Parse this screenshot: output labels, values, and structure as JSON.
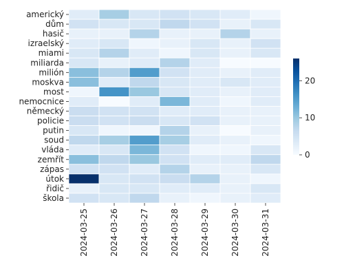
{
  "chart_data": {
    "type": "heatmap",
    "title": "",
    "xlabel": "",
    "ylabel": "",
    "x_categories": [
      "2024-03-25",
      "2024-03-26",
      "2024-03-27",
      "2024-03-28",
      "2024-03-29",
      "2024-03-30",
      "2024-03-31"
    ],
    "y_categories": [
      "americký",
      "dům",
      "hasič",
      "izraelský",
      "miami",
      "miliarda",
      "milión",
      "moskva",
      "most",
      "nemocnice",
      "německý",
      "policie",
      "putin",
      "soud",
      "vláda",
      "zemřít",
      "zápas",
      "útok",
      "řidič",
      "škola"
    ],
    "values": [
      [
        3,
        9,
        4,
        5,
        4,
        3,
        1
      ],
      [
        5,
        4,
        4,
        7,
        5,
        2,
        4
      ],
      [
        2,
        2,
        8,
        2,
        2,
        8,
        2
      ],
      [
        3,
        4,
        1,
        2,
        4,
        2,
        5
      ],
      [
        4,
        8,
        3,
        1,
        4,
        2,
        4
      ],
      [
        4,
        2,
        3,
        8,
        3,
        0,
        0
      ],
      [
        11,
        8,
        15,
        5,
        3,
        2,
        3
      ],
      [
        11,
        3,
        7,
        4,
        3,
        4,
        3
      ],
      [
        1,
        16,
        10,
        4,
        3,
        2,
        3
      ],
      [
        3,
        0,
        3,
        12,
        3,
        1,
        3
      ],
      [
        6,
        5,
        5,
        3,
        3,
        2,
        2
      ],
      [
        6,
        5,
        6,
        4,
        5,
        2,
        2
      ],
      [
        4,
        1,
        1,
        8,
        2,
        0,
        2
      ],
      [
        7,
        9,
        15,
        9,
        3,
        2,
        1
      ],
      [
        3,
        4,
        12,
        5,
        1,
        1,
        4
      ],
      [
        11,
        7,
        10,
        5,
        3,
        3,
        7
      ],
      [
        5,
        5,
        3,
        8,
        2,
        2,
        4
      ],
      [
        26,
        4,
        5,
        6,
        8,
        2,
        1
      ],
      [
        2,
        4,
        4,
        3,
        3,
        2,
        4
      ],
      [
        5,
        4,
        7,
        2,
        1,
        2,
        3
      ]
    ],
    "colorbar": {
      "min": 0,
      "max": 26,
      "ticks": [
        0,
        10,
        20
      ]
    },
    "colormap": [
      "#f7fbff",
      "#deebf7",
      "#c6dbef",
      "#9ecae1",
      "#6baed6",
      "#4292c6",
      "#2171b5",
      "#08519c",
      "#08306b"
    ],
    "grid": true
  }
}
